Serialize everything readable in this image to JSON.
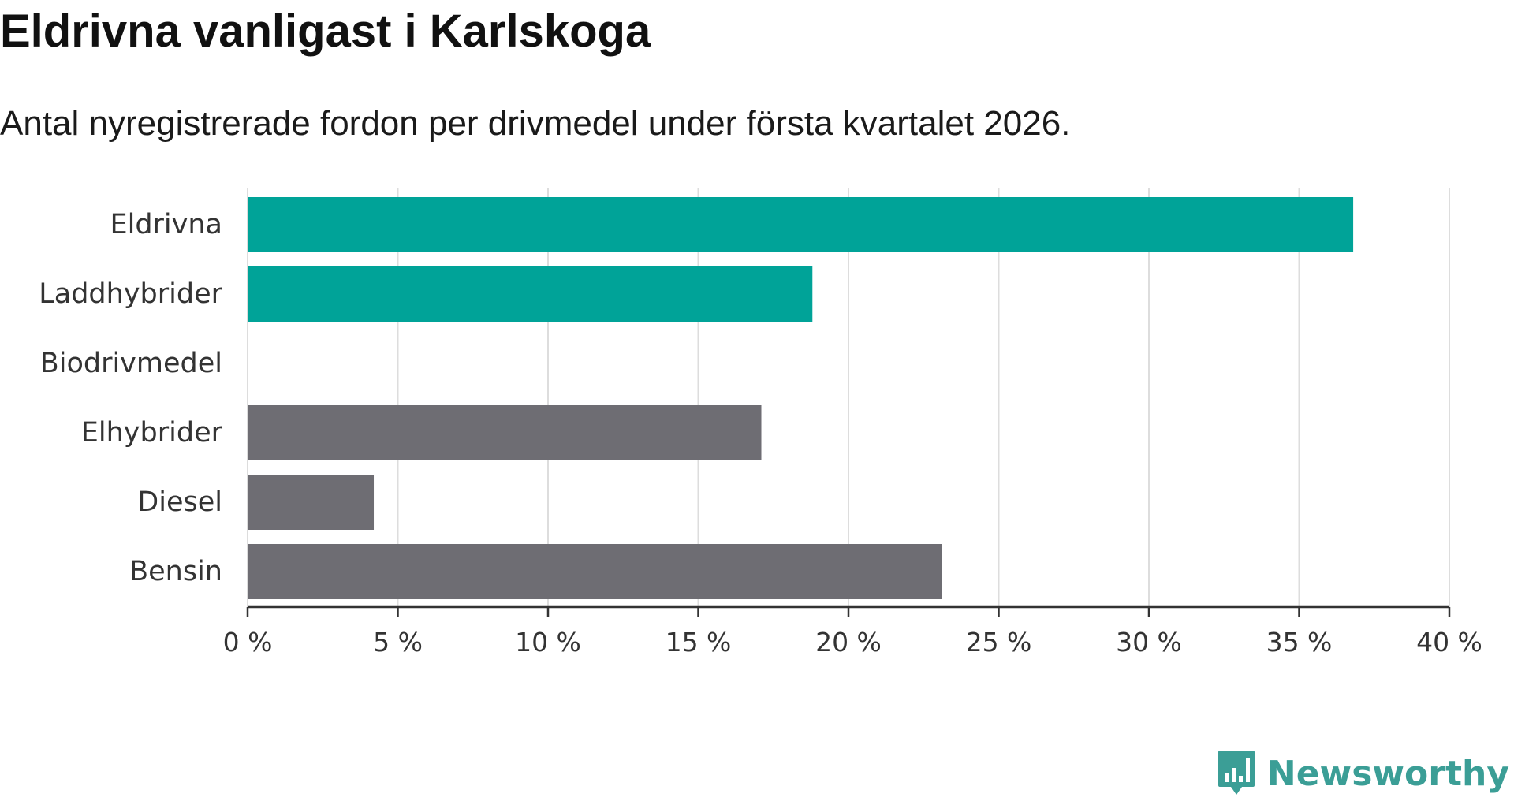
{
  "header": {
    "title": "Eldrivna vanligast i Karlskoga",
    "subtitle": "Antal nyregistrerade fordon per drivmedel under första kvartalet 2026."
  },
  "brand": {
    "name": "Newsworthy",
    "icon": "newsworthy-bar-chart-bubble-icon",
    "color": "#3b9e96"
  },
  "chart_data": {
    "type": "bar",
    "orientation": "horizontal",
    "title": "Eldrivna vanligast i Karlskoga",
    "subtitle": "Antal nyregistrerade fordon per drivmedel under första kvartalet 2026.",
    "xlabel": "",
    "ylabel": "",
    "xlim": [
      0,
      40
    ],
    "tick_values": [
      0,
      5,
      10,
      15,
      20,
      25,
      30,
      35,
      40
    ],
    "tick_labels": [
      "0 %",
      "5 %",
      "10 %",
      "15 %",
      "20 %",
      "25 %",
      "30 %",
      "35 %",
      "40 %"
    ],
    "grid": true,
    "categories": [
      "Eldrivna",
      "Laddhybrider",
      "Biodrivmedel",
      "Elhybrider",
      "Diesel",
      "Bensin"
    ],
    "values": [
      36.8,
      18.8,
      0,
      17.1,
      4.2,
      23.1
    ],
    "colors": [
      "#00a398",
      "#00a398",
      "#00a398",
      "#6e6d73",
      "#6e6d73",
      "#6e6d73"
    ],
    "gridline_color": "#dddddd",
    "axis_color": "#333333"
  }
}
